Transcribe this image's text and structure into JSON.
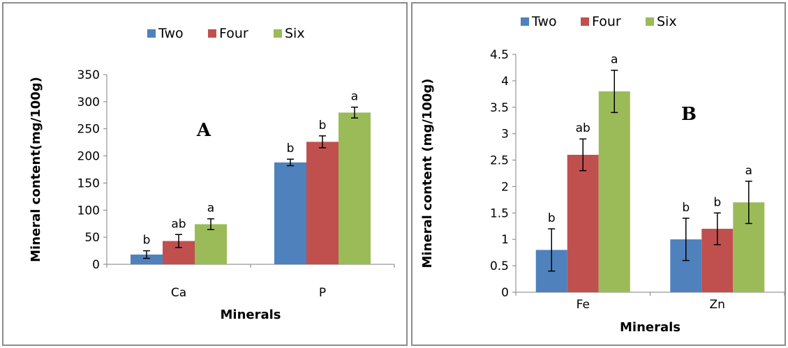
{
  "colors": {
    "Two": "#4f81bd",
    "Four": "#c0504d",
    "Six": "#9bbb59"
  },
  "chart_data": [
    {
      "type": "bar",
      "panel_label": "A",
      "categories": [
        "Ca",
        "P"
      ],
      "series": [
        {
          "name": "Two",
          "values": [
            18,
            188
          ],
          "errors": [
            7,
            6
          ],
          "letters": [
            "b",
            "b"
          ]
        },
        {
          "name": "Four",
          "values": [
            43,
            226
          ],
          "errors": [
            12,
            11
          ],
          "letters": [
            "ab",
            "b"
          ]
        },
        {
          "name": "Six",
          "values": [
            74,
            280
          ],
          "errors": [
            10,
            10
          ],
          "letters": [
            "a",
            "a"
          ]
        }
      ],
      "xlabel": "Minerals",
      "ylabel": "Mineral content(mg/100g)",
      "ylim": [
        0,
        350
      ],
      "yticks": [
        "0",
        "50",
        "100",
        "150",
        "200",
        "250",
        "300",
        "350"
      ],
      "legend_position": "top",
      "grid": false
    },
    {
      "type": "bar",
      "panel_label": "B",
      "categories": [
        "Fe",
        "Zn"
      ],
      "series": [
        {
          "name": "Two",
          "values": [
            0.8,
            1.0
          ],
          "errors": [
            0.4,
            0.4
          ],
          "letters": [
            "b",
            "b"
          ]
        },
        {
          "name": "Four",
          "values": [
            2.6,
            1.2
          ],
          "errors": [
            0.3,
            0.3
          ],
          "letters": [
            "ab",
            "b"
          ]
        },
        {
          "name": "Six",
          "values": [
            3.8,
            1.7
          ],
          "errors": [
            0.4,
            0.4
          ],
          "letters": [
            "a",
            "a"
          ]
        }
      ],
      "xlabel": "Minerals",
      "ylabel": "Mineral content (mg/100g)",
      "ylim": [
        0,
        4.5
      ],
      "yticks": [
        "0",
        "0.5",
        "1",
        "1.5",
        "2",
        "2.5",
        "3",
        "3.5",
        "4",
        "4.5"
      ],
      "legend_position": "top",
      "grid": false
    }
  ]
}
